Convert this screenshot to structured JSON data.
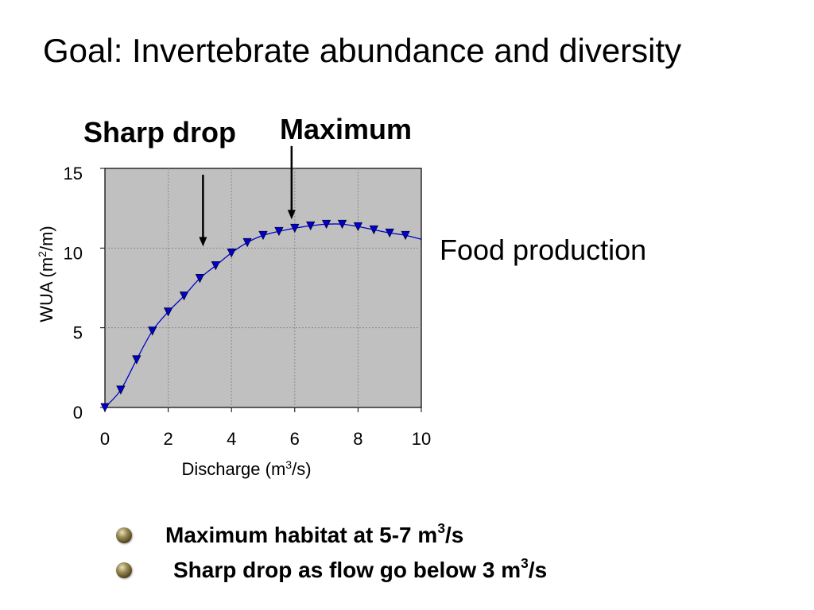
{
  "slide": {
    "title": "Goal: Invertebrate abundance and diversity",
    "side_label": "Food production",
    "annotations": {
      "sharp_drop": "Sharp drop",
      "maximum": "Maximum"
    },
    "bullets": [
      {
        "text": "Maximum habitat at 5-7 m",
        "sup": "3",
        "tail": "/s"
      },
      {
        "text": "Sharp drop as flow go below 3 m",
        "sup": "3",
        "tail": "/s"
      }
    ]
  },
  "chart_data": {
    "type": "line",
    "title": "",
    "xlabel": {
      "text": "Discharge (m",
      "sup": "3",
      "tail": "/s)"
    },
    "ylabel": {
      "text": "WUA (m",
      "sup": "2",
      "tail": "/m)"
    },
    "xlim": [
      0,
      10
    ],
    "ylim": [
      0,
      15
    ],
    "x_ticks": [
      0,
      2,
      4,
      6,
      8,
      10
    ],
    "y_ticks": [
      0,
      5,
      10,
      15
    ],
    "grid": true,
    "plot_background": "#c0c0c0",
    "series": [
      {
        "color": "#0000cc",
        "marker": "triangle-down",
        "points": [
          [
            0,
            0
          ],
          [
            0.5,
            1.1
          ],
          [
            1.0,
            3.0
          ],
          [
            1.5,
            4.8
          ],
          [
            2.0,
            6.0
          ],
          [
            2.5,
            7.0
          ],
          [
            3.0,
            8.1
          ],
          [
            3.5,
            8.9
          ],
          [
            4.0,
            9.7
          ],
          [
            4.5,
            10.35
          ],
          [
            5.0,
            10.8
          ],
          [
            5.5,
            11.05
          ],
          [
            6.0,
            11.25
          ],
          [
            6.5,
            11.4
          ],
          [
            7.0,
            11.5
          ],
          [
            7.5,
            11.5
          ],
          [
            8.0,
            11.35
          ],
          [
            8.5,
            11.15
          ],
          [
            9.0,
            10.95
          ],
          [
            9.5,
            10.8
          ]
        ],
        "line_end": [
          10,
          10.55
        ]
      }
    ],
    "arrows": [
      {
        "label": "Sharp drop",
        "x": 3.1,
        "y_from": 14.6,
        "y_to": 10.1
      },
      {
        "label": "Maximum",
        "x": 5.9,
        "y_from": 16.4,
        "y_to": 11.8
      }
    ]
  }
}
